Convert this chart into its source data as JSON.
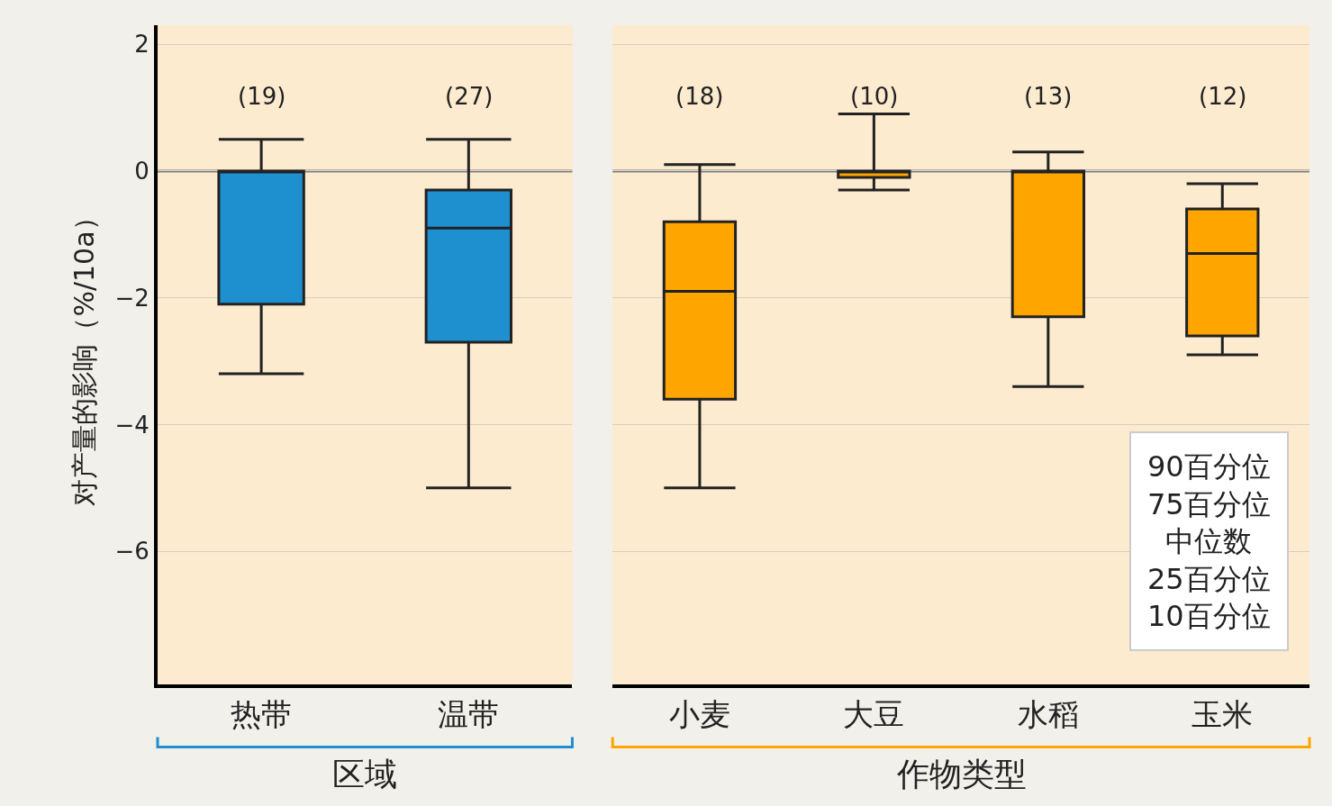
{
  "chart_data": [
    {
      "type": "box",
      "categories": [
        "热带",
        "温带"
      ],
      "xlabel": "区域",
      "ylabel": "对产量的影响（%/10a）",
      "color": "#1e8fcf",
      "boxes": [
        {
          "low": -3.2,
          "q1": -2.1,
          "median": 0.0,
          "q3": 0.0,
          "high": 0.5
        },
        {
          "low": -5.0,
          "q1": -2.7,
          "median": -0.9,
          "q3": -0.3,
          "high": 0.5
        }
      ],
      "annotations": [
        "(19)",
        "(27)"
      ],
      "ylim": [
        -8.1,
        2.3
      ],
      "yticks": [
        2,
        0,
        {
          "value": -2,
          "label": "−2"
        },
        {
          "value": -4,
          "label": "−4"
        },
        {
          "value": -6,
          "label": "−6"
        }
      ],
      "grid": "y",
      "ref_lines": [
        {
          "axis": "y",
          "value": 0,
          "color": "#7f7f7f"
        }
      ]
    },
    {
      "type": "box",
      "categories": [
        "小麦",
        "大豆",
        "水稻",
        "玉米"
      ],
      "xlabel": "作物类型",
      "color": "#ffa500",
      "boxes": [
        {
          "low": -5.0,
          "q1": -3.6,
          "median": -1.9,
          "q3": -0.8,
          "high": 0.1
        },
        {
          "low": -0.3,
          "q1": -0.1,
          "median": 0.0,
          "q3": 0.0,
          "high": 0.9
        },
        {
          "low": -3.4,
          "q1": -2.3,
          "median": 0.0,
          "q3": 0.0,
          "high": 0.3
        },
        {
          "low": -2.9,
          "q1": -2.6,
          "median": -1.3,
          "q3": -0.6,
          "high": -0.2
        }
      ],
      "annotations": [
        "(18)",
        "(10)",
        "(13)",
        "(12)",
        "90百分位",
        "75百分位",
        "中位数",
        "25百分位",
        "10百分位"
      ],
      "ylim": [
        -8.1,
        2.3
      ],
      "yticks": [
        2,
        0,
        -2,
        -4,
        -6
      ],
      "tick_labels": "x",
      "grid": "y",
      "ref_lines": [
        {
          "axis": "y",
          "value": 0,
          "color": "#7f7f7f"
        }
      ]
    }
  ]
}
